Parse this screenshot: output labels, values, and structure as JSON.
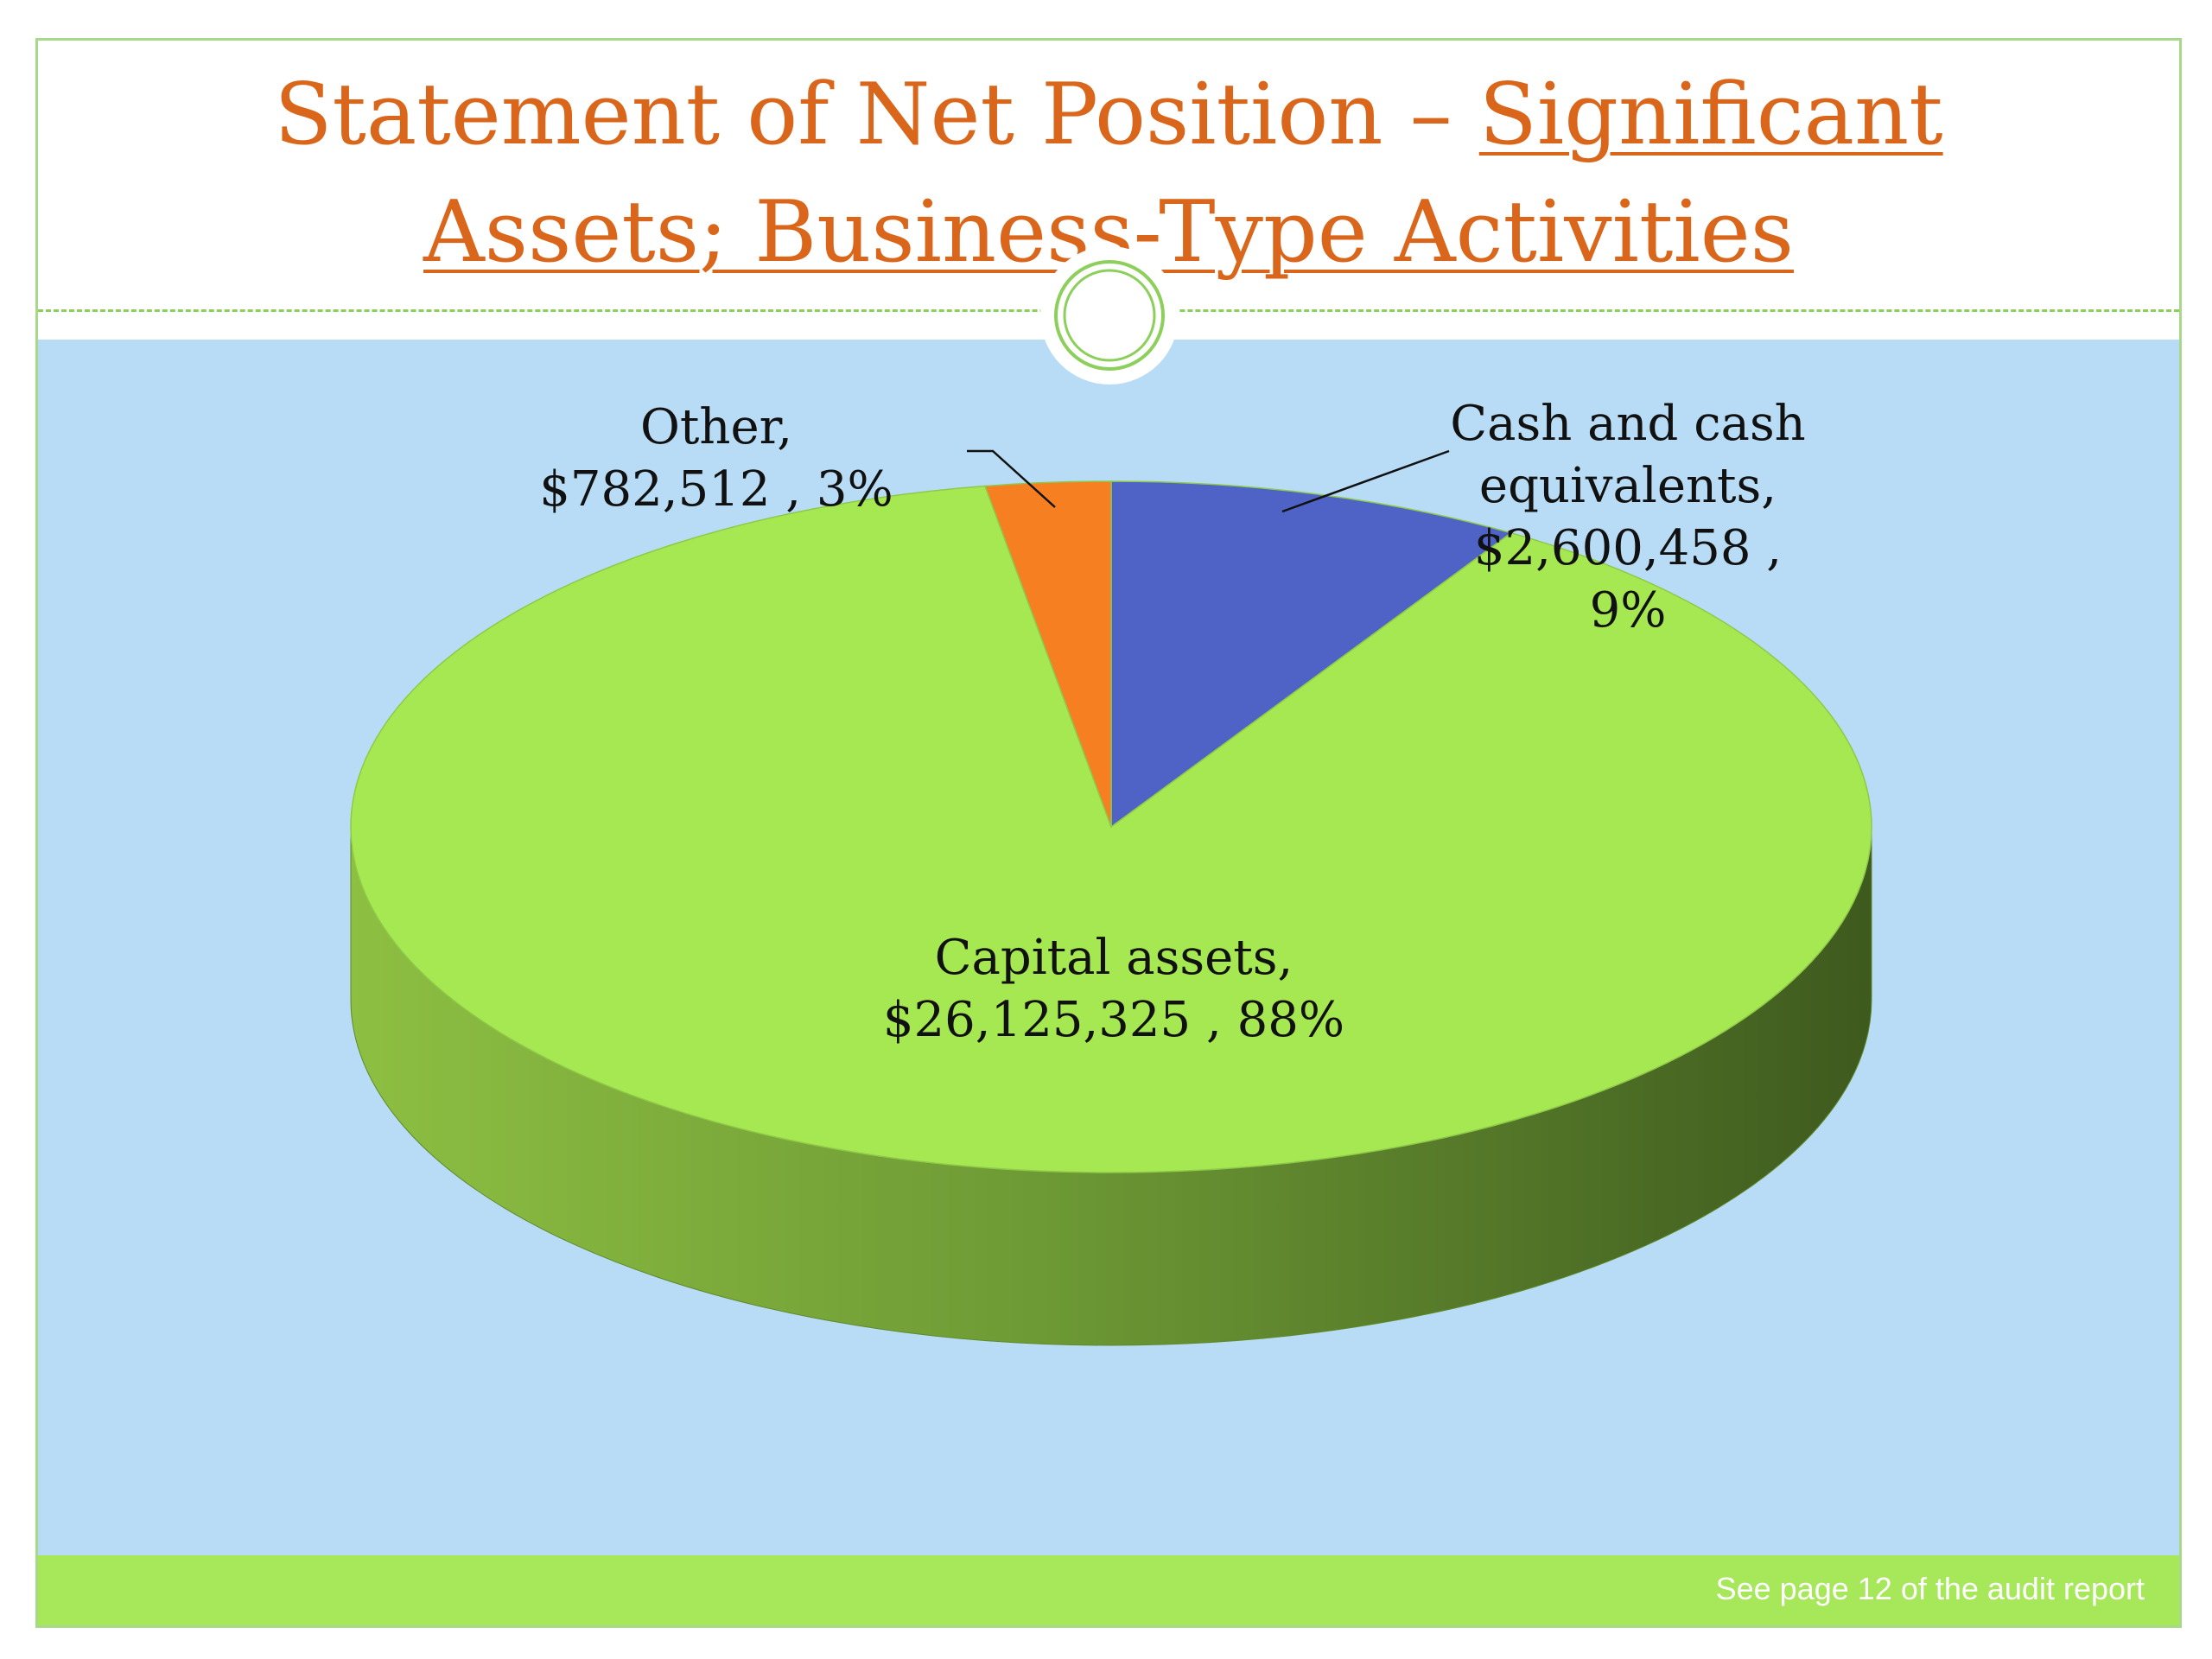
{
  "title": {
    "part1": "Statement of Net Position – ",
    "part2": "Significant",
    "part3": "Assets; Business-Type Activities"
  },
  "footer": {
    "note": "See page 12 of the audit report"
  },
  "colors": {
    "cash": "#4f63c6",
    "capital": "#a6e851",
    "capital_side_light": "#8dbf42",
    "capital_side_dark": "#3e5a1e",
    "other": "#f57f21",
    "background": "#b8dcf5",
    "title": "#d9661a"
  },
  "chart_data": {
    "type": "pie",
    "style": "3d",
    "slices": [
      {
        "name": "Cash and cash equivalents",
        "value": 2600458,
        "percent": 9,
        "label_lines": [
          "Cash and cash",
          "equivalents,",
          "$2,600,458 ,",
          "9%"
        ]
      },
      {
        "name": "Capital assets",
        "value": 26125325,
        "percent": 88,
        "label_lines": [
          "Capital assets,",
          "$26,125,325 , 88%"
        ]
      },
      {
        "name": "Other",
        "value": 782512,
        "percent": 3,
        "label_lines": [
          "Other,",
          "$782,512 , 3%"
        ]
      }
    ]
  }
}
